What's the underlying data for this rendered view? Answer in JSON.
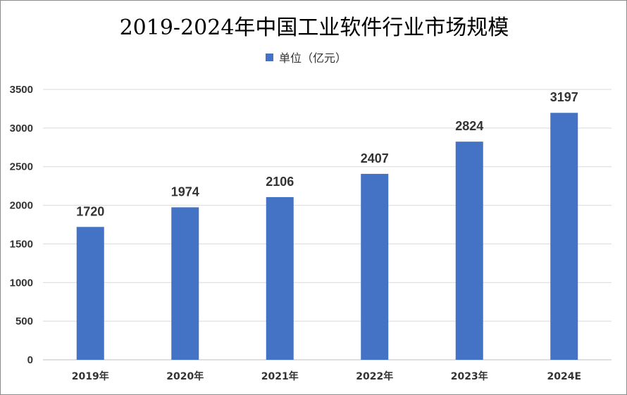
{
  "chart_data": {
    "type": "bar",
    "title": "2019-2024年中国工业软件行业市场规模",
    "xlabel": "",
    "ylabel": "",
    "categories": [
      "2019年",
      "2020年",
      "2021年",
      "2022年",
      "2023年",
      "2024E"
    ],
    "series": [
      {
        "name": "单位（亿元）",
        "values": [
          1720,
          1974,
          2106,
          2407,
          2824,
          3197
        ],
        "color": "#4472c4"
      }
    ],
    "ylim": [
      0,
      3500
    ],
    "yticks": [
      "0",
      "500",
      "1000",
      "1500",
      "2000",
      "2500",
      "3000",
      "3500"
    ],
    "data_labels": [
      "1720",
      "1974",
      "2106",
      "2407",
      "2824",
      "3197"
    ],
    "grid": true,
    "legend_position": "top"
  }
}
